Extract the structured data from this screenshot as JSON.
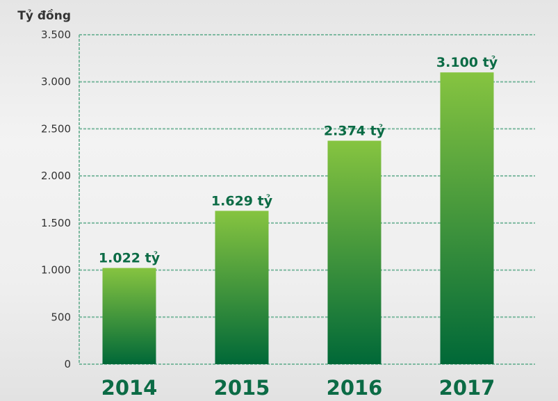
{
  "chart_data": {
    "type": "bar",
    "title": "",
    "ylabel": "Tỷ đồng",
    "xlabel": "",
    "categories": [
      "2014",
      "2015",
      "2016",
      "2017"
    ],
    "values": [
      1022,
      1629,
      2374,
      3100
    ],
    "data_labels": [
      "1.022 tỷ",
      "1.629 tỷ",
      "2.374 tỷ",
      "3.100 tỷ"
    ],
    "ylim": [
      0,
      3500
    ],
    "yticks": [
      0,
      500,
      1000,
      1500,
      2000,
      2500,
      3000,
      3500
    ],
    "ytick_labels": [
      "0",
      "500",
      "1.000",
      "1.500",
      "2.000",
      "2.500",
      "3.000",
      "3.500"
    ],
    "grid": true,
    "grid_style": "dashed",
    "colors": {
      "bar_top": "#86c440",
      "bar_bottom": "#006838",
      "grid": "#7db9a0",
      "label": "#0b6b45",
      "axis_text": "#333333"
    }
  }
}
